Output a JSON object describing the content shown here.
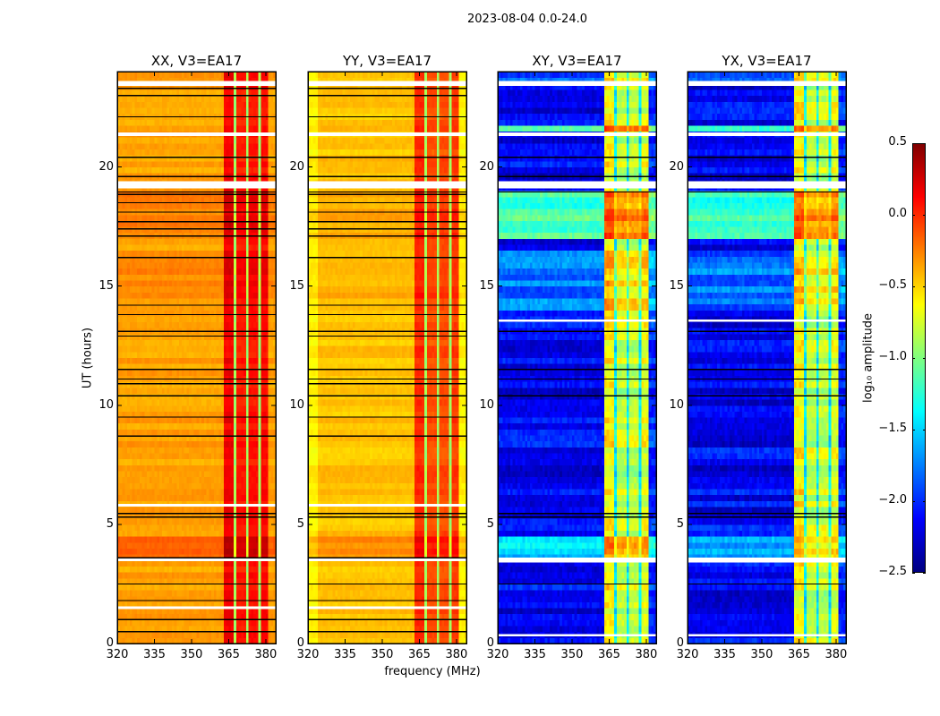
{
  "suptitle": "2023-08-04 0.0-24.0",
  "xlabel": "frequency (MHz)",
  "ylabel": "UT (hours)",
  "colorbar": {
    "label": "log₁₀ amplitude",
    "colormap": "jet",
    "range": [
      -2.5,
      0.5
    ],
    "ticks": [
      0.5,
      0.0,
      -0.5,
      -1.0,
      -1.5,
      -2.0,
      -2.5
    ],
    "tick_labels": [
      "0.5",
      "0.0",
      "−0.5",
      "−1.0",
      "−1.5",
      "−2.0",
      "−2.5"
    ]
  },
  "chart_data": [
    {
      "type": "heatmap",
      "title": "XX, V3=EA17",
      "xlim": [
        320,
        384
      ],
      "ylim": [
        0,
        24
      ],
      "xticks": [
        320,
        335,
        350,
        365,
        380
      ],
      "yticks": [
        0,
        5,
        10,
        15,
        20
      ],
      "freq_bin_mhz": 1,
      "time_bin_hours": 0.25,
      "freq_profile": [
        [
          320,
          363,
          -0.35
        ],
        [
          363,
          367.5,
          0.15
        ],
        [
          368.5,
          372.5,
          0.05
        ],
        [
          373.5,
          377.5,
          0.08
        ],
        [
          378.5,
          381,
          0.1
        ],
        [
          381,
          384,
          -0.35
        ]
      ],
      "time_offsets": [
        [
          3.6,
          4.5,
          0.2
        ],
        [
          14.5,
          16.5,
          0.08
        ],
        [
          17,
          19,
          0.1
        ]
      ],
      "noise": 0.06,
      "flagged_times": [
        [
          3.45,
          3.6
        ],
        [
          19.1,
          19.4
        ],
        [
          21.3,
          21.45
        ],
        [
          23.4,
          23.6
        ],
        [
          5.75,
          5.85
        ],
        [
          1.45,
          1.55
        ]
      ],
      "black_lines": [
        0.5,
        1.0,
        1.8,
        2.5,
        3.6,
        5.3,
        5.45,
        8.7,
        9.5,
        10.4,
        10.9,
        11.1,
        11.5,
        12.9,
        13.1,
        13.8,
        14.2,
        16.2,
        17.1,
        17.4,
        17.7,
        18.1,
        18.5,
        18.85,
        18.95,
        19.6,
        20.4,
        22.1,
        23.0,
        23.3
      ]
    },
    {
      "type": "heatmap",
      "title": "YY, V3=EA17",
      "xlim": [
        320,
        384
      ],
      "ylim": [
        0,
        24
      ],
      "xticks": [
        320,
        335,
        350,
        365,
        380
      ],
      "yticks": [
        0,
        5,
        10,
        15,
        20
      ],
      "freq_bin_mhz": 1,
      "time_bin_hours": 0.25,
      "freq_profile": [
        [
          320,
          324,
          -0.6
        ],
        [
          324,
          363,
          -0.45
        ],
        [
          363,
          367.5,
          0.0
        ],
        [
          368.5,
          372.5,
          -0.1
        ],
        [
          373.5,
          377.5,
          -0.1
        ],
        [
          378.5,
          381,
          -0.05
        ],
        [
          381,
          384,
          -0.6
        ]
      ],
      "time_offsets": [
        [
          3.6,
          4.5,
          0.15
        ],
        [
          14.5,
          16.5,
          0.06
        ],
        [
          17,
          19,
          0.08
        ]
      ],
      "noise": 0.06,
      "flagged_times": [
        [
          3.45,
          3.6
        ],
        [
          19.1,
          19.4
        ],
        [
          21.3,
          21.45
        ],
        [
          23.4,
          23.6
        ],
        [
          5.75,
          5.85
        ],
        [
          1.45,
          1.55
        ]
      ],
      "black_lines": [
        0.5,
        1.0,
        1.8,
        2.5,
        3.6,
        5.3,
        5.45,
        8.7,
        9.5,
        10.4,
        10.9,
        11.1,
        11.5,
        12.9,
        13.1,
        13.8,
        14.2,
        16.2,
        17.1,
        17.4,
        17.7,
        18.1,
        18.5,
        18.85,
        18.95,
        19.6,
        20.4,
        22.1,
        23.0,
        23.3
      ]
    },
    {
      "type": "heatmap",
      "title": "XY, V3=EA17",
      "xlim": [
        320,
        384
      ],
      "ylim": [
        0,
        24
      ],
      "xticks": [
        320,
        335,
        350,
        365,
        380
      ],
      "yticks": [
        0,
        5,
        10,
        15,
        20
      ],
      "freq_bin_mhz": 1,
      "time_bin_hours": 0.25,
      "freq_profile": [
        [
          320,
          363,
          -2.15
        ],
        [
          363,
          367.5,
          -0.6
        ],
        [
          368.5,
          372.5,
          -0.8
        ],
        [
          373.5,
          377.5,
          -0.8
        ],
        [
          378.5,
          381,
          -0.7
        ],
        [
          381,
          384,
          -2.0
        ]
      ],
      "time_offsets": [
        [
          3.6,
          4.6,
          0.6
        ],
        [
          14,
          16.5,
          0.35
        ],
        [
          17,
          19,
          0.95
        ],
        [
          21.4,
          21.8,
          0.9
        ],
        [
          23.6,
          24,
          0.3
        ]
      ],
      "noise": 0.18,
      "flagged_times": [
        [
          3.4,
          3.6
        ],
        [
          19.1,
          19.4
        ],
        [
          21.3,
          21.45
        ],
        [
          23.4,
          23.6
        ],
        [
          0.3,
          0.4
        ],
        [
          13.5,
          13.6
        ]
      ],
      "black_lines": [
        2.5,
        5.3,
        5.45,
        10.4,
        11.1,
        11.5,
        13.1,
        18.95,
        19.6,
        20.4
      ]
    },
    {
      "type": "heatmap",
      "title": "YX, V3=EA17",
      "xlim": [
        320,
        384
      ],
      "ylim": [
        0,
        24
      ],
      "xticks": [
        320,
        335,
        350,
        365,
        380
      ],
      "yticks": [
        0,
        5,
        10,
        15,
        20
      ],
      "freq_bin_mhz": 1,
      "time_bin_hours": 0.25,
      "freq_profile": [
        [
          320,
          363,
          -2.15
        ],
        [
          363,
          367.5,
          -0.6
        ],
        [
          368.5,
          372.5,
          -0.8
        ],
        [
          373.5,
          377.5,
          -0.8
        ],
        [
          378.5,
          381,
          -0.7
        ],
        [
          381,
          384,
          -2.0
        ]
      ],
      "time_offsets": [
        [
          3.6,
          4.6,
          0.6
        ],
        [
          14,
          16.5,
          0.35
        ],
        [
          17,
          19,
          0.95
        ],
        [
          21.4,
          21.8,
          0.9
        ],
        [
          23.6,
          24,
          0.3
        ]
      ],
      "noise": 0.18,
      "flagged_times": [
        [
          3.4,
          3.6
        ],
        [
          19.1,
          19.4
        ],
        [
          21.3,
          21.45
        ],
        [
          23.4,
          23.6
        ],
        [
          0.3,
          0.4
        ],
        [
          13.5,
          13.6
        ]
      ],
      "black_lines": [
        2.5,
        5.3,
        5.45,
        10.4,
        11.1,
        11.5,
        13.1,
        18.95,
        19.6,
        20.4
      ]
    }
  ]
}
